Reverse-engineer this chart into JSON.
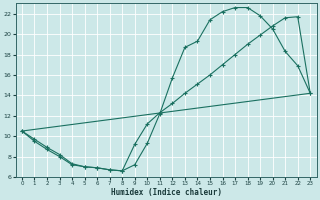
{
  "xlabel": "Humidex (Indice chaleur)",
  "bg_color": "#cce8e8",
  "grid_color": "#ffffff",
  "line_color": "#1a7060",
  "xlim": [
    -0.5,
    23.5
  ],
  "ylim": [
    6,
    23
  ],
  "yticks": [
    6,
    8,
    10,
    12,
    14,
    16,
    18,
    20,
    22
  ],
  "xticks": [
    0,
    1,
    2,
    3,
    4,
    5,
    6,
    7,
    8,
    9,
    10,
    11,
    12,
    13,
    14,
    15,
    16,
    17,
    18,
    19,
    20,
    21,
    22,
    23
  ],
  "curve1_x": [
    0,
    1,
    2,
    3,
    4,
    5,
    6,
    7,
    8,
    9,
    10,
    11,
    12,
    13,
    14,
    15,
    16,
    17,
    18,
    19,
    20,
    21,
    22,
    23
  ],
  "curve1_y": [
    10.5,
    9.7,
    8.9,
    8.2,
    7.3,
    7.0,
    6.9,
    6.7,
    6.6,
    7.2,
    9.3,
    12.2,
    15.7,
    18.7,
    19.3,
    21.4,
    22.2,
    22.6,
    22.6,
    21.8,
    20.5,
    18.3,
    16.9,
    14.2
  ],
  "curve2_x": [
    0,
    23
  ],
  "curve2_y": [
    10.5,
    14.2
  ],
  "curve3_x": [
    0,
    1,
    2,
    3,
    4,
    5,
    6,
    7,
    8,
    9,
    10,
    11,
    12,
    13,
    14,
    15,
    16,
    17,
    18,
    19,
    20,
    21,
    22,
    23
  ],
  "curve3_y": [
    10.5,
    9.5,
    8.7,
    8.0,
    7.2,
    7.0,
    6.9,
    6.7,
    6.6,
    9.2,
    11.2,
    12.3,
    13.2,
    14.2,
    15.1,
    16.0,
    17.0,
    18.0,
    19.0,
    19.9,
    20.8,
    21.6,
    21.7,
    14.2
  ]
}
